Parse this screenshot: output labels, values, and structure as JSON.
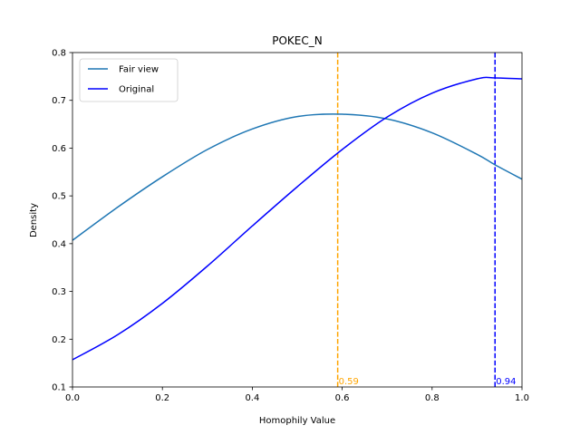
{
  "chart_data": {
    "type": "line",
    "title": "POKEC_N",
    "xlabel": "Homophily Value",
    "ylabel": "Density",
    "xlim": [
      0,
      1
    ],
    "ylim": [
      0.1,
      0.8
    ],
    "x_ticks": [
      "0.0",
      "0.2",
      "0.4",
      "0.6",
      "0.8",
      "1.0"
    ],
    "y_ticks": [
      "0.1",
      "0.2",
      "0.3",
      "0.4",
      "0.5",
      "0.6",
      "0.7",
      "0.8"
    ],
    "legend_position": "top-left",
    "grid": false,
    "x": [
      0.0,
      0.1,
      0.2,
      0.3,
      0.4,
      0.5,
      0.6,
      0.7,
      0.8,
      0.9,
      0.94,
      1.0
    ],
    "series": [
      {
        "name": "Fair view",
        "color": "#1f77b4",
        "values": [
          0.407,
          0.476,
          0.54,
          0.597,
          0.64,
          0.666,
          0.671,
          0.661,
          0.632,
          0.587,
          0.565,
          0.535
        ]
      },
      {
        "name": "Original",
        "color": "#0000ff",
        "values": [
          0.157,
          0.209,
          0.275,
          0.353,
          0.437,
          0.519,
          0.597,
          0.665,
          0.715,
          0.745,
          0.747,
          0.745
        ]
      }
    ],
    "vlines": [
      {
        "x": 0.59,
        "label": "0.59",
        "color": "#ffa500",
        "style": "dashed"
      },
      {
        "x": 0.94,
        "label": "0.94",
        "color": "#0000ff",
        "style": "dashed"
      }
    ]
  }
}
